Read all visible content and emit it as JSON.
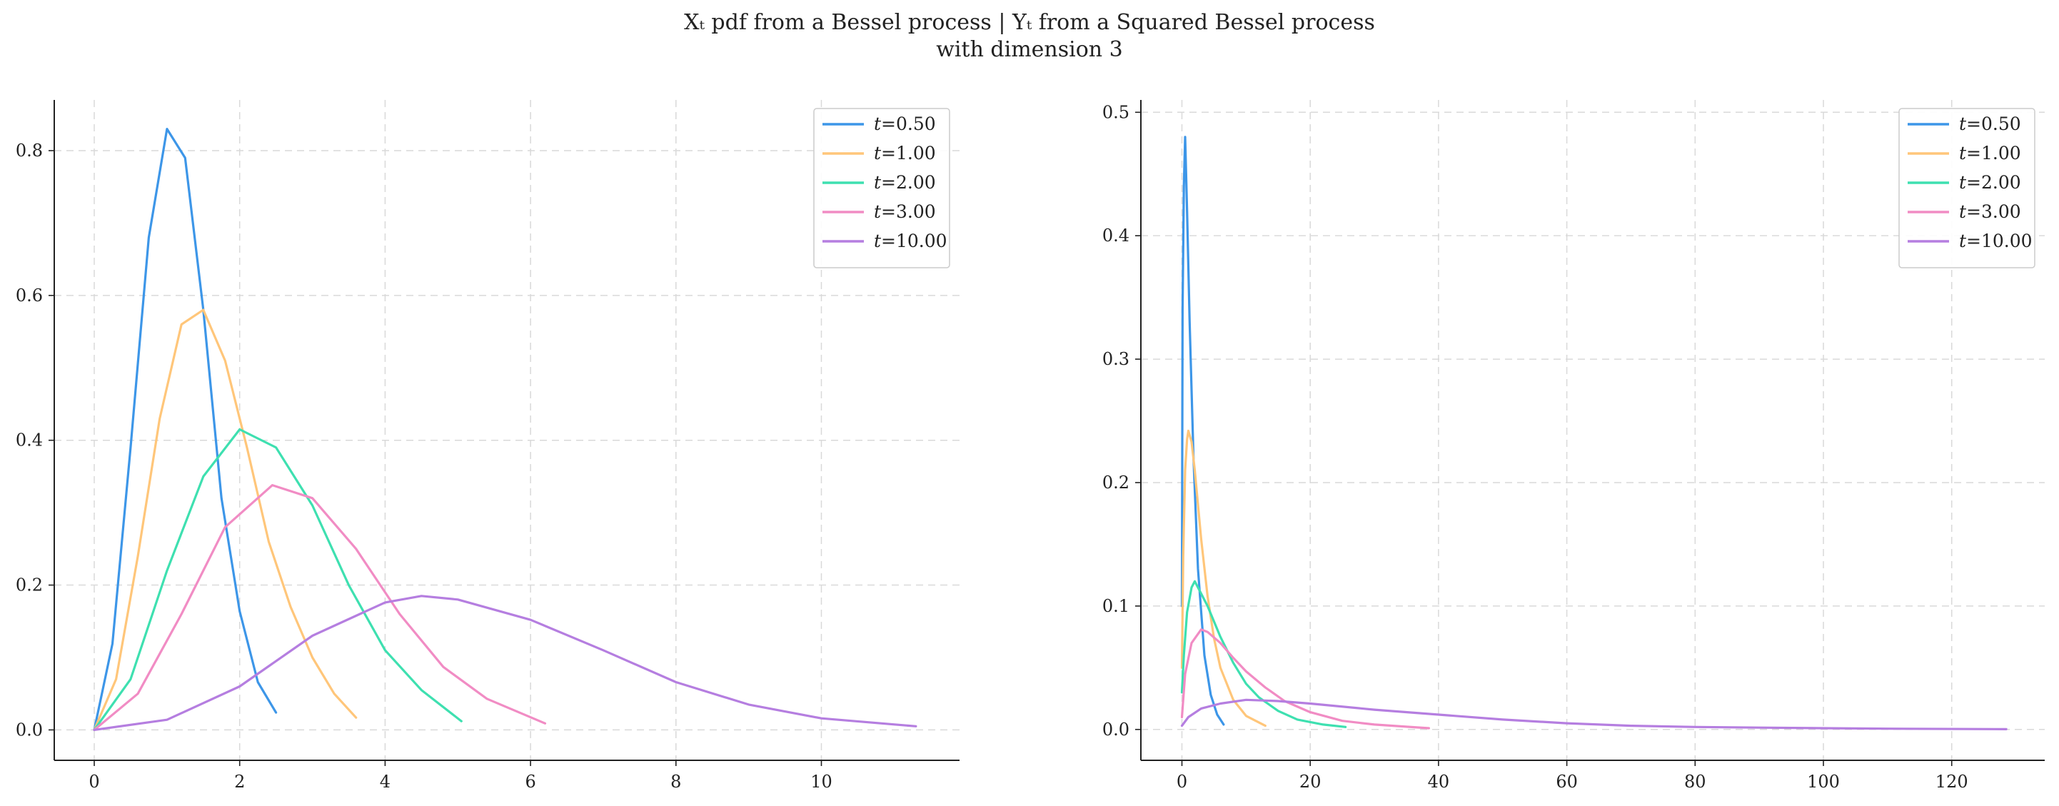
{
  "figure": {
    "title_line1": "Xₜ pdf from a Bessel process | Yₜ from a Squared Bessel process",
    "title_line2": "with dimension 3"
  },
  "chart_data": [
    {
      "type": "line",
      "title": "",
      "xlabel": "",
      "ylabel": "",
      "xlim": [
        -0.55,
        11.9
      ],
      "ylim": [
        -0.042,
        0.87
      ],
      "xticks": [
        0,
        2,
        4,
        6,
        8,
        10
      ],
      "xtick_labels": [
        "0",
        "2",
        "4",
        "6",
        "8",
        "10"
      ],
      "yticks": [
        0.0,
        0.2,
        0.4,
        0.6,
        0.8
      ],
      "ytick_labels": [
        "0.0",
        "0.2",
        "0.4",
        "0.6",
        "0.8"
      ],
      "grid": true,
      "legend_position": "top-right",
      "series": [
        {
          "name": "t=0.50",
          "color": "#3d96e8",
          "x": [
            0,
            0.25,
            0.5,
            0.75,
            1.0,
            1.25,
            1.5,
            1.75,
            2.0,
            2.25,
            2.5
          ],
          "y": [
            0,
            0.119,
            0.39,
            0.68,
            0.83,
            0.79,
            0.58,
            0.32,
            0.164,
            0.066,
            0.024
          ]
        },
        {
          "name": "t=1.00",
          "color": "#ffc67a",
          "x": [
            0,
            0.3,
            0.6,
            0.9,
            1.2,
            1.5,
            1.8,
            2.1,
            2.4,
            2.7,
            3.0,
            3.3,
            3.6
          ],
          "y": [
            0,
            0.07,
            0.24,
            0.43,
            0.56,
            0.58,
            0.51,
            0.39,
            0.26,
            0.17,
            0.1,
            0.05,
            0.017
          ]
        },
        {
          "name": "t=2.00",
          "color": "#3ee0b0",
          "x": [
            0,
            0.5,
            1.0,
            1.5,
            2.0,
            2.5,
            3.0,
            3.5,
            4.0,
            4.5,
            5.05
          ],
          "y": [
            0,
            0.07,
            0.22,
            0.35,
            0.415,
            0.39,
            0.31,
            0.2,
            0.11,
            0.055,
            0.012
          ]
        },
        {
          "name": "t=3.00",
          "color": "#f18cc4",
          "x": [
            0,
            0.6,
            1.2,
            1.8,
            2.45,
            3.0,
            3.6,
            4.2,
            4.8,
            5.4,
            6.2
          ],
          "y": [
            0,
            0.05,
            0.16,
            0.28,
            0.338,
            0.32,
            0.25,
            0.16,
            0.087,
            0.043,
            0.009
          ]
        },
        {
          "name": "t=10.00",
          "color": "#b57ee0",
          "x": [
            0,
            1,
            2,
            3,
            4,
            4.5,
            5,
            6,
            7,
            8,
            9,
            10,
            11.3
          ],
          "y": [
            0,
            0.014,
            0.06,
            0.13,
            0.176,
            0.185,
            0.18,
            0.152,
            0.11,
            0.066,
            0.035,
            0.016,
            0.005
          ]
        }
      ]
    },
    {
      "type": "line",
      "title": "",
      "xlabel": "",
      "ylabel": "",
      "xlim": [
        -6.4,
        134.5
      ],
      "ylim": [
        -0.025,
        0.51
      ],
      "xticks": [
        0,
        20,
        40,
        60,
        80,
        100,
        120
      ],
      "xtick_labels": [
        "0",
        "20",
        "40",
        "60",
        "80",
        "100",
        "120"
      ],
      "yticks": [
        0.0,
        0.1,
        0.2,
        0.3,
        0.4,
        0.5
      ],
      "ytick_labels": [
        "0.0",
        "0.1",
        "0.2",
        "0.3",
        "0.4",
        "0.5"
      ],
      "grid": true,
      "legend_position": "top-right",
      "series": [
        {
          "name": "t=0.50",
          "color": "#3d96e8",
          "x": [
            0,
            0.1,
            0.3,
            0.5,
            0.8,
            1.2,
            1.8,
            2.5,
            3.5,
            4.5,
            5.5,
            6.5
          ],
          "y": [
            0.1,
            0.34,
            0.44,
            0.48,
            0.42,
            0.33,
            0.22,
            0.13,
            0.06,
            0.028,
            0.012,
            0.004
          ]
        },
        {
          "name": "t=1.00",
          "color": "#ffc67a",
          "x": [
            0,
            0.2,
            0.5,
            0.8,
            1.0,
            1.5,
            2.0,
            3,
            4,
            5,
            6,
            8,
            10,
            13
          ],
          "y": [
            0.05,
            0.14,
            0.21,
            0.235,
            0.242,
            0.233,
            0.21,
            0.154,
            0.108,
            0.074,
            0.05,
            0.024,
            0.011,
            0.003
          ]
        },
        {
          "name": "t=2.00",
          "color": "#3ee0b0",
          "x": [
            0,
            0.3,
            0.8,
            1.5,
            2.0,
            3,
            4,
            6,
            8,
            10,
            12,
            15,
            18,
            22,
            25.5
          ],
          "y": [
            0.03,
            0.06,
            0.095,
            0.115,
            0.12,
            0.11,
            0.1,
            0.075,
            0.054,
            0.037,
            0.026,
            0.015,
            0.008,
            0.004,
            0.002
          ]
        },
        {
          "name": "t=3.00",
          "color": "#f18cc4",
          "x": [
            0,
            0.5,
            1.5,
            3,
            4,
            6,
            8,
            10,
            13,
            16,
            20,
            25,
            30,
            38.5
          ],
          "y": [
            0.01,
            0.045,
            0.07,
            0.081,
            0.079,
            0.07,
            0.058,
            0.047,
            0.034,
            0.023,
            0.014,
            0.007,
            0.004,
            0.001
          ]
        },
        {
          "name": "t=10.00",
          "color": "#b57ee0",
          "x": [
            0,
            1,
            3,
            6,
            10,
            15,
            20,
            30,
            40,
            50,
            60,
            70,
            80,
            90,
            100,
            110,
            128.5
          ],
          "y": [
            0.003,
            0.01,
            0.017,
            0.021,
            0.024,
            0.023,
            0.021,
            0.016,
            0.012,
            0.008,
            0.005,
            0.003,
            0.002,
            0.0015,
            0.001,
            0.0006,
            0.0002
          ]
        }
      ]
    }
  ]
}
